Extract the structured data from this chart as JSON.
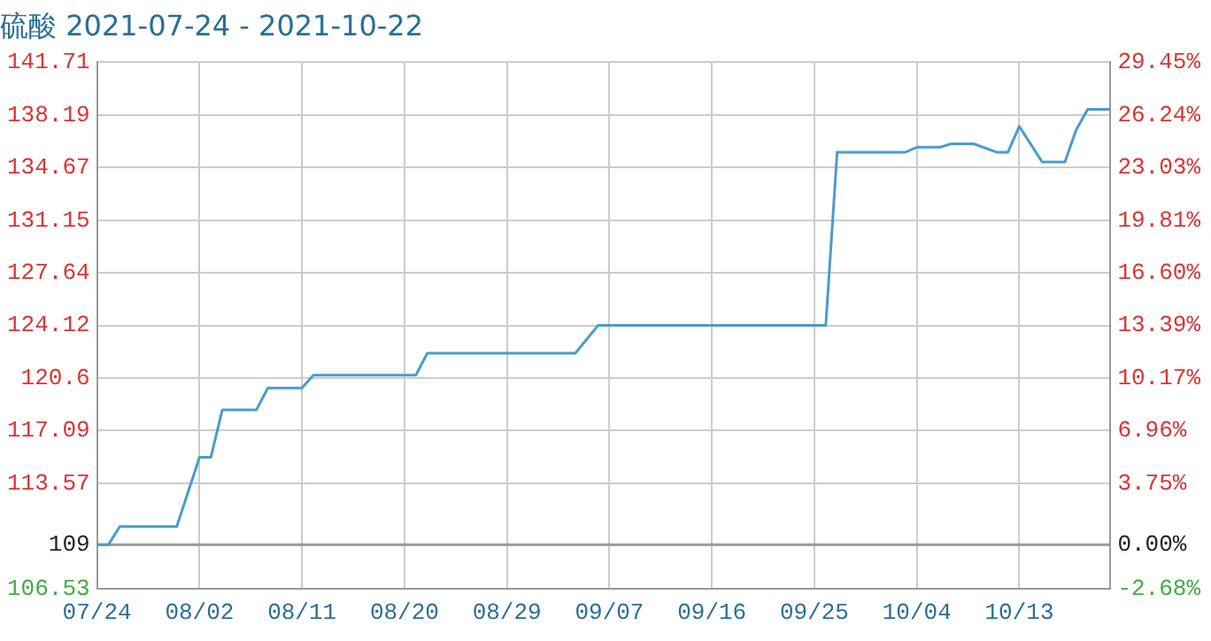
{
  "chart_data": {
    "type": "line",
    "title": "硫酸 2021-07-24 - 2021-10-22",
    "x": [
      "--07-24",
      "--07-25",
      "--07-26",
      "--07-31",
      "--08-02",
      "--08-03",
      "--08-04",
      "--08-07",
      "--08-08",
      "--08-11",
      "--08-12",
      "--08-21",
      "--08-22",
      "--09-04",
      "--09-06",
      "--09-26",
      "--09-27",
      "--10-03",
      "--10-04",
      "--10-06",
      "--10-07",
      "--10-09",
      "--10-11",
      "--10-12",
      "--10-13",
      "--10-15",
      "--10-17",
      "--10-18",
      "--10-19",
      "--10-21"
    ],
    "series": [
      {
        "color": "#4a9ccc",
        "values": [
          109.47,
          109.47,
          110.68,
          110.68,
          115.31,
          115.31,
          118.48,
          118.48,
          119.94,
          119.94,
          120.8,
          120.8,
          122.26,
          122.26,
          124.12,
          124.12,
          135.7,
          135.7,
          136.03,
          136.03,
          136.26,
          136.26,
          135.7,
          135.7,
          137.43,
          135.05,
          135.05,
          137.2,
          138.57,
          138.57
        ]
      }
    ],
    "xlim": [
      "--07-24",
      "--10-21"
    ],
    "xticks": [
      {
        "value": "--07-24",
        "label": "07/24"
      },
      {
        "value": "--08-02",
        "label": "08/02"
      },
      {
        "value": "--08-11",
        "label": "08/11"
      },
      {
        "value": "--08-20",
        "label": "08/20"
      },
      {
        "value": "--08-29",
        "label": "08/29"
      },
      {
        "value": "--09-07",
        "label": "09/07"
      },
      {
        "value": "--09-16",
        "label": "09/16"
      },
      {
        "value": "--09-25",
        "label": "09/25"
      },
      {
        "value": "--10-04",
        "label": "10/04"
      },
      {
        "value": "--10-13",
        "label": "10/13"
      }
    ],
    "ylim": [
      106.53,
      141.71
    ],
    "yticks": [
      106.53,
      {
        "value": 109.47,
        "label": "109"
      },
      113.57,
      117.09,
      120.6,
      124.12,
      127.64,
      131.15,
      134.67,
      138.19,
      141.71
    ],
    "y2lim": [
      -2.68,
      29.45
    ],
    "y2ticks": [
      {
        "value": -2.68,
        "label": "-2.68%"
      },
      {
        "value": 0,
        "label": "0.00%"
      },
      {
        "value": 3.75,
        "label": "3.75%"
      },
      {
        "value": 6.96,
        "label": "6.96%"
      },
      {
        "value": 10.17,
        "label": "10.17%"
      },
      {
        "value": 13.39,
        "label": "13.39%"
      },
      {
        "value": 16.6,
        "label": "16.60%"
      },
      {
        "value": 19.81,
        "label": "19.81%"
      },
      {
        "value": 23.03,
        "label": "23.03%"
      },
      {
        "value": 26.24,
        "label": "26.24%"
      },
      {
        "value": 29.45,
        "label": "29.45%"
      }
    ],
    "ref_lines": [
      {
        "axis": "y2",
        "value": 0,
        "color": "#999999"
      }
    ],
    "grid": true,
    "legend": false,
    "marker": "none",
    "line_style": "solid"
  }
}
